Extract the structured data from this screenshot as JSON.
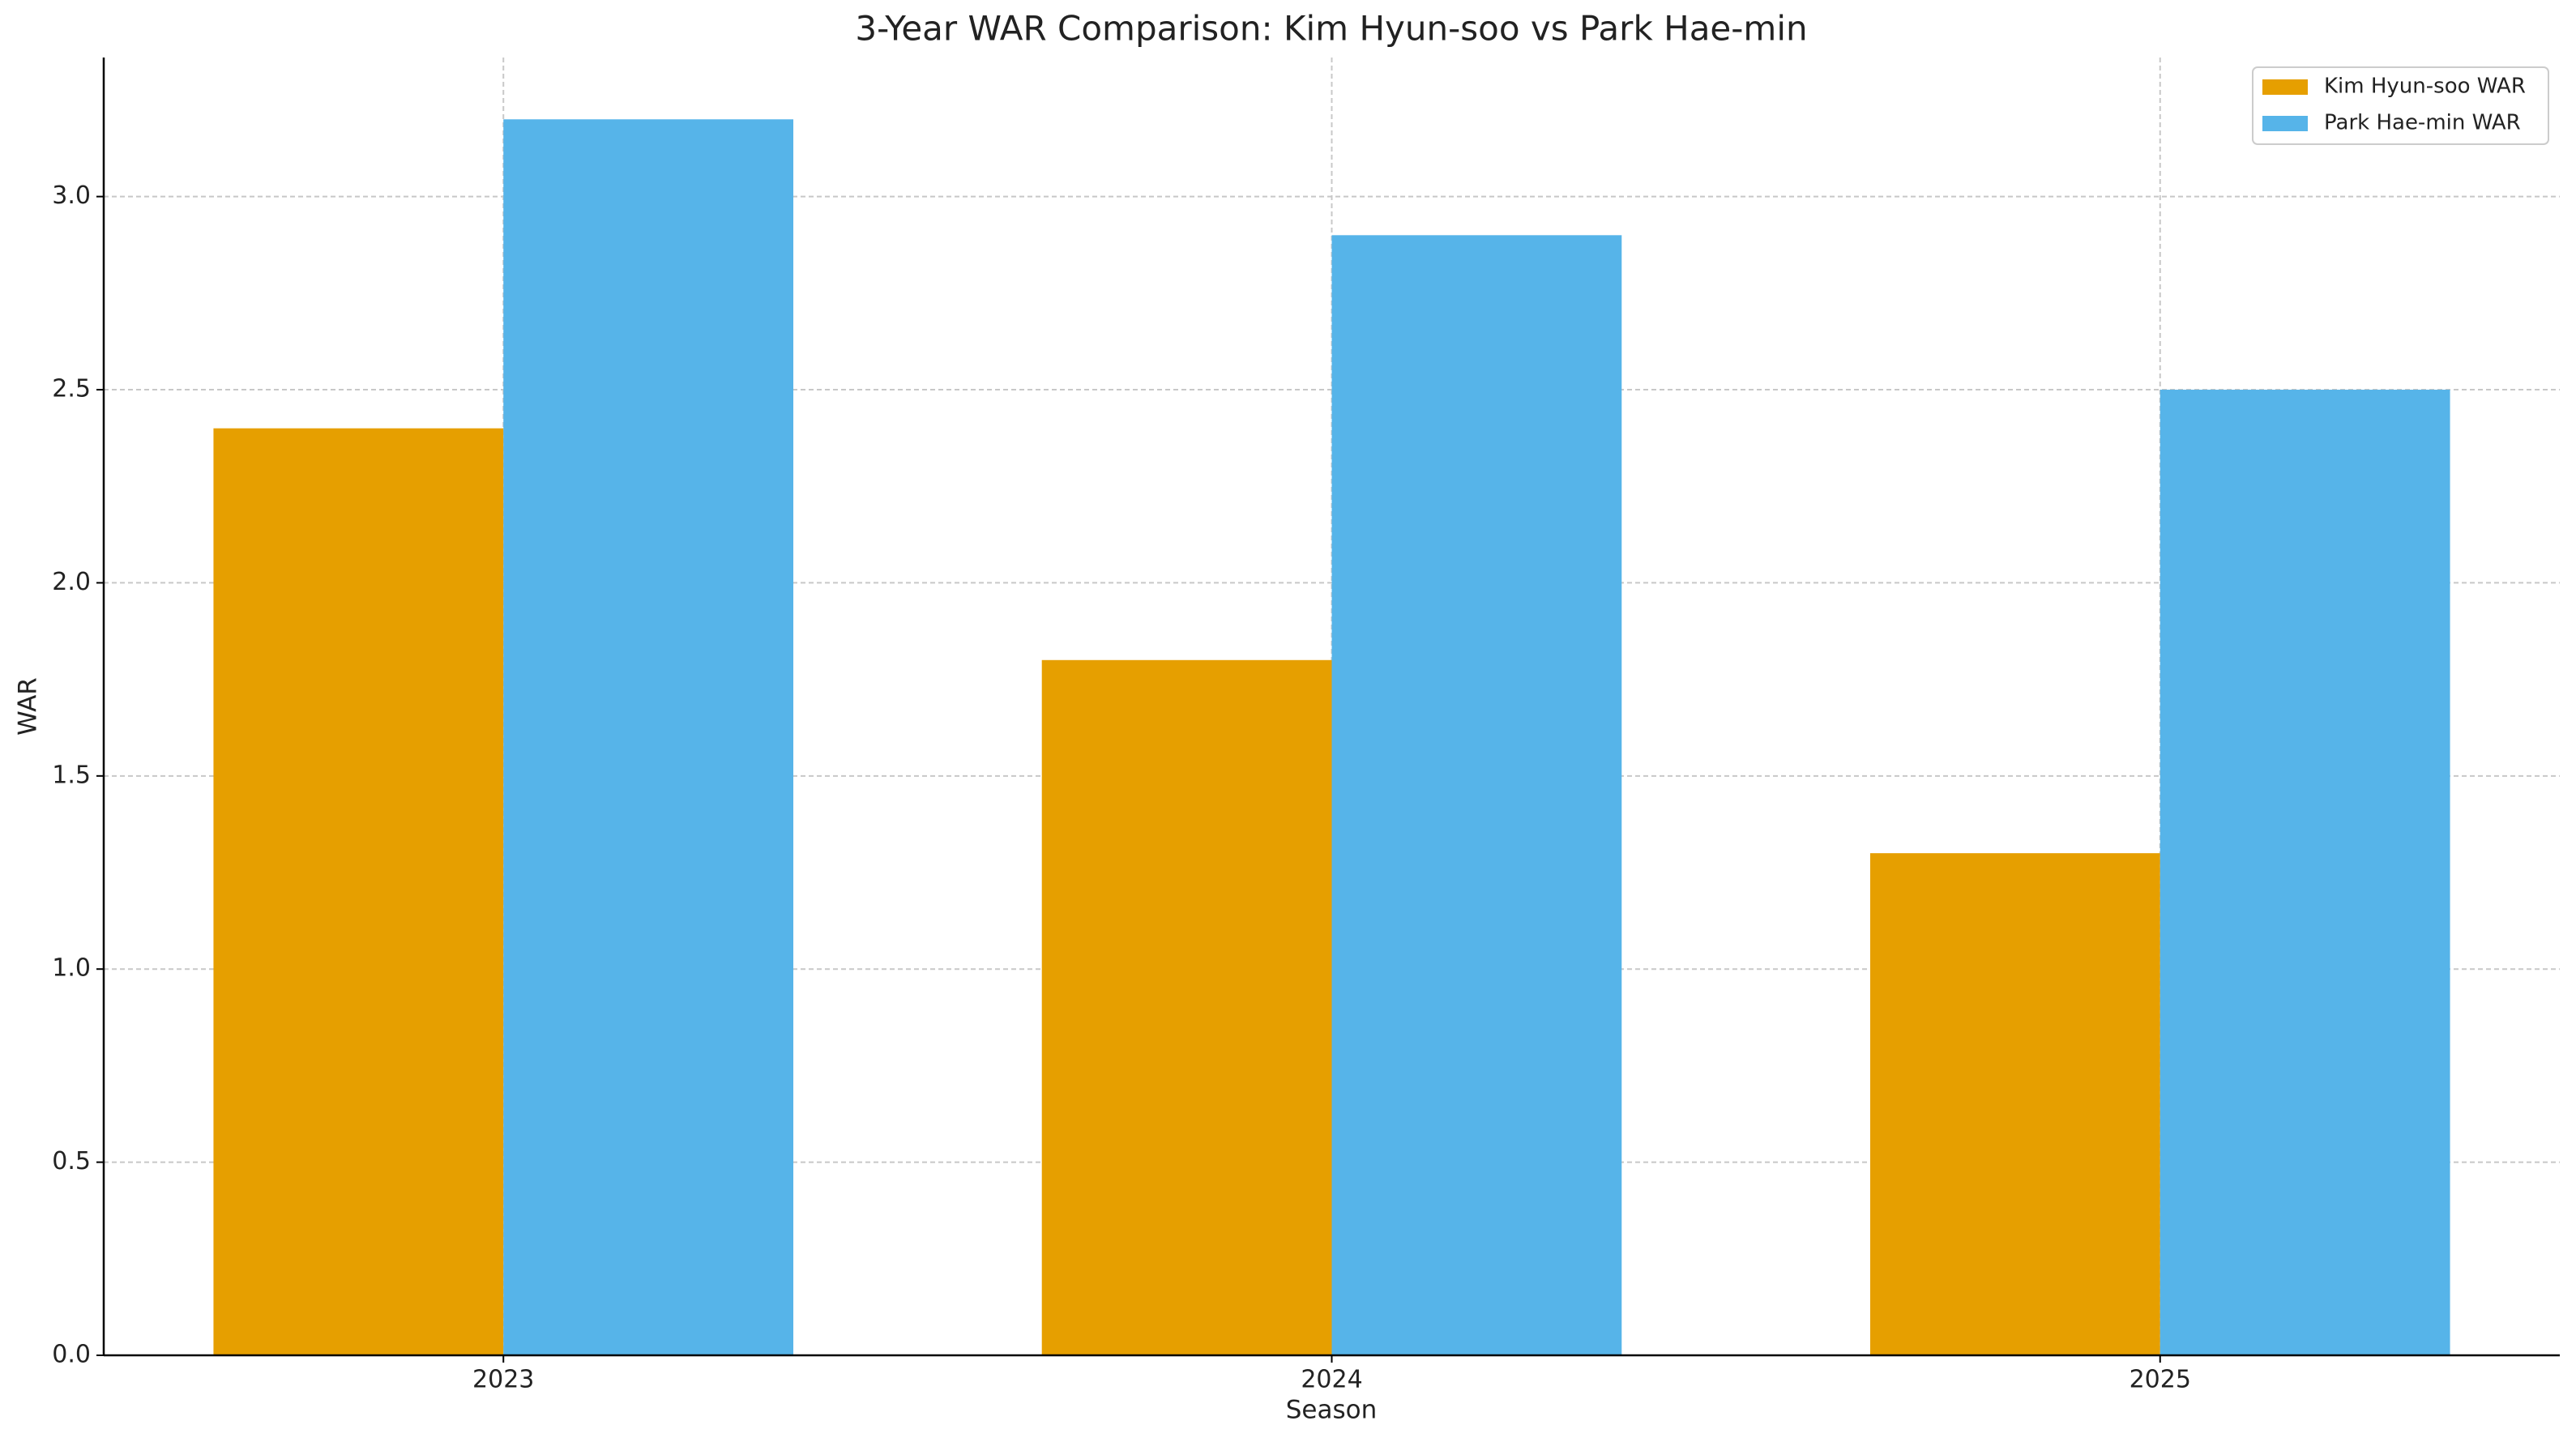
{
  "chart_data": {
    "type": "bar",
    "title": "3-Year WAR Comparison: Kim Hyun-soo vs Park Hae-min",
    "x_label": "Season",
    "y_label": "WAR",
    "categories": [
      "2023",
      "2024",
      "2025"
    ],
    "series": [
      {
        "name": "Kim Hyun-soo WAR",
        "color": "#E69F00",
        "values": [
          2.4,
          1.8,
          1.3
        ]
      },
      {
        "name": "Park Hae-min WAR",
        "color": "#56B4E9",
        "values": [
          3.2,
          2.9,
          2.5
        ]
      }
    ],
    "ylim": [
      0,
      3.36
    ],
    "yticks": [
      {
        "value": 0,
        "label": "0.0"
      },
      0.5,
      {
        "value": 1,
        "label": "1.0"
      },
      1.5,
      {
        "value": 2,
        "label": "2.0"
      },
      2.5,
      {
        "value": 3,
        "label": "3.0"
      }
    ],
    "grid": true,
    "legend": "upper right"
  }
}
